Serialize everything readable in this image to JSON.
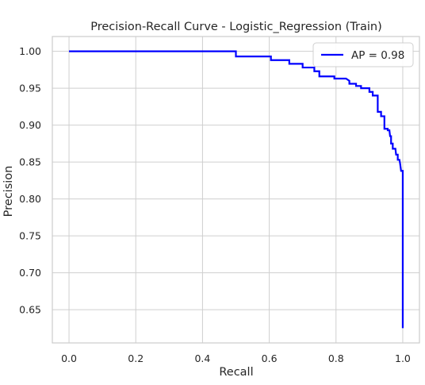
{
  "chart_data": {
    "type": "line",
    "title": "Precision-Recall Curve - Logistic_Regression (Train)",
    "xlabel": "Recall",
    "ylabel": "Precision",
    "xlim": [
      -0.05,
      1.05
    ],
    "ylim": [
      0.605,
      1.02
    ],
    "xticks": [
      0.0,
      0.2,
      0.4,
      0.6,
      0.8,
      1.0
    ],
    "xtick_labels": [
      "0.0",
      "0.2",
      "0.4",
      "0.6",
      "0.8",
      "1.0"
    ],
    "yticks": [
      0.65,
      0.7,
      0.75,
      0.8,
      0.85,
      0.9,
      0.95,
      1.0
    ],
    "ytick_labels": [
      "0.65",
      "0.70",
      "0.75",
      "0.80",
      "0.85",
      "0.90",
      "0.95",
      "1.00"
    ],
    "grid": true,
    "legend_position": "top-right",
    "series": [
      {
        "name": "AP = 0.98",
        "color": "#0000ff",
        "points": [
          [
            0.0,
            1.0
          ],
          [
            0.5,
            1.0
          ],
          [
            0.5,
            0.993
          ],
          [
            0.605,
            0.993
          ],
          [
            0.605,
            0.988
          ],
          [
            0.66,
            0.988
          ],
          [
            0.66,
            0.983
          ],
          [
            0.7,
            0.983
          ],
          [
            0.7,
            0.978
          ],
          [
            0.735,
            0.978
          ],
          [
            0.735,
            0.973
          ],
          [
            0.75,
            0.973
          ],
          [
            0.75,
            0.966
          ],
          [
            0.795,
            0.966
          ],
          [
            0.795,
            0.963
          ],
          [
            0.83,
            0.963
          ],
          [
            0.84,
            0.96
          ],
          [
            0.84,
            0.956
          ],
          [
            0.86,
            0.956
          ],
          [
            0.86,
            0.953
          ],
          [
            0.875,
            0.953
          ],
          [
            0.875,
            0.95
          ],
          [
            0.9,
            0.95
          ],
          [
            0.9,
            0.945
          ],
          [
            0.91,
            0.945
          ],
          [
            0.91,
            0.94
          ],
          [
            0.925,
            0.94
          ],
          [
            0.925,
            0.918
          ],
          [
            0.935,
            0.918
          ],
          [
            0.935,
            0.912
          ],
          [
            0.945,
            0.912
          ],
          [
            0.945,
            0.895
          ],
          [
            0.955,
            0.895
          ],
          [
            0.955,
            0.893
          ],
          [
            0.96,
            0.893
          ],
          [
            0.962,
            0.885
          ],
          [
            0.965,
            0.885
          ],
          [
            0.965,
            0.875
          ],
          [
            0.97,
            0.875
          ],
          [
            0.97,
            0.868
          ],
          [
            0.978,
            0.868
          ],
          [
            0.98,
            0.86
          ],
          [
            0.985,
            0.86
          ],
          [
            0.985,
            0.853
          ],
          [
            0.99,
            0.853
          ],
          [
            0.992,
            0.848
          ],
          [
            0.995,
            0.838
          ],
          [
            1.0,
            0.838
          ],
          [
            1.0,
            0.625
          ]
        ]
      }
    ]
  }
}
